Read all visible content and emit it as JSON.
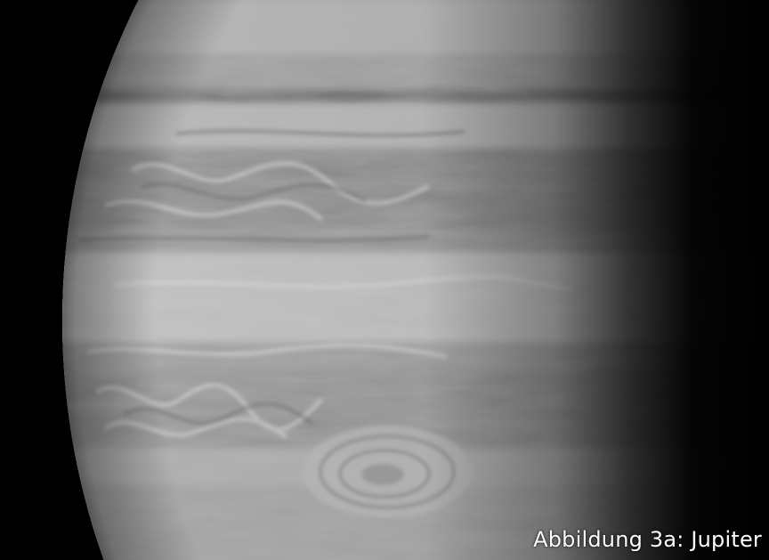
{
  "image": {
    "subject": "planet-jupiter",
    "background_color": "#000000",
    "planet_tone_light": "#d4d4d4",
    "planet_tone_mid": "#9a9a9a",
    "planet_tone_dark": "#3a3a3a"
  },
  "caption": {
    "text": "Abbildung 3a: Jupiter",
    "color": "#ffffff"
  }
}
